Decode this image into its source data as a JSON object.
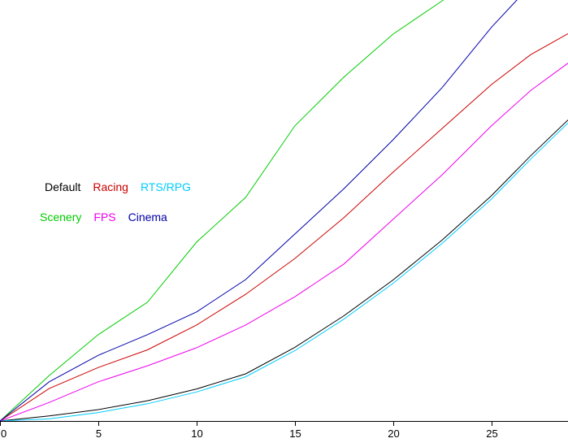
{
  "chart_data": {
    "type": "line",
    "title": "",
    "xlabel": "",
    "ylabel": "",
    "xlim": [
      0,
      28.9
    ],
    "ylim": [
      0,
      100
    ],
    "x_ticks": [
      0,
      5,
      10,
      15,
      20,
      25
    ],
    "grid": false,
    "legend_position": "left-middle",
    "legend_rows": [
      [
        "Default",
        "Racing",
        "RTS/RPG"
      ],
      [
        "Scenery",
        "FPS",
        "Cinema"
      ]
    ],
    "x": [
      0,
      2.5,
      5,
      7.5,
      10,
      12.5,
      15,
      17.5,
      20,
      22.5,
      25,
      27,
      28.9
    ],
    "series": [
      {
        "name": "Default",
        "color": "#000000",
        "values": [
          0,
          1.2,
          2.7,
          4.8,
          7.6,
          11.2,
          17.5,
          25.0,
          33.5,
          43.0,
          53.5,
          63.0,
          71.5
        ]
      },
      {
        "name": "Racing",
        "color": "#cc0000",
        "values": [
          0,
          7.7,
          12.7,
          16.9,
          22.8,
          30.1,
          38.6,
          48.3,
          59.1,
          69.5,
          79.9,
          87.0,
          92.0
        ]
      },
      {
        "name": "RTS/RPG",
        "color": "#00ccff",
        "values": [
          0,
          0.5,
          2.0,
          4.1,
          6.9,
          10.5,
          16.7,
          24.2,
          32.7,
          42.2,
          52.7,
          62.2,
          70.8
        ]
      },
      {
        "name": "Scenery",
        "color": "#00cc00",
        "values": [
          0,
          10.8,
          20.5,
          28.2,
          42.5,
          53.1,
          70.1,
          81.7,
          91.9,
          99.8,
          108,
          116,
          124
        ]
      },
      {
        "name": "FPS",
        "color": "#ee00ee",
        "values": [
          0,
          4.4,
          9.3,
          13.1,
          17.4,
          22.8,
          29.5,
          37.3,
          47.9,
          58.5,
          70.1,
          78.5,
          85.0
        ]
      },
      {
        "name": "Cinema",
        "color": "#0000aa",
        "values": [
          0,
          9.3,
          15.6,
          20.5,
          25.9,
          33.6,
          44.4,
          55.2,
          66.8,
          79.2,
          93.5,
          103.5,
          111.0
        ]
      }
    ]
  },
  "axis": {
    "tick_labels": [
      "0",
      "5",
      "10",
      "15",
      "20",
      "25"
    ]
  }
}
